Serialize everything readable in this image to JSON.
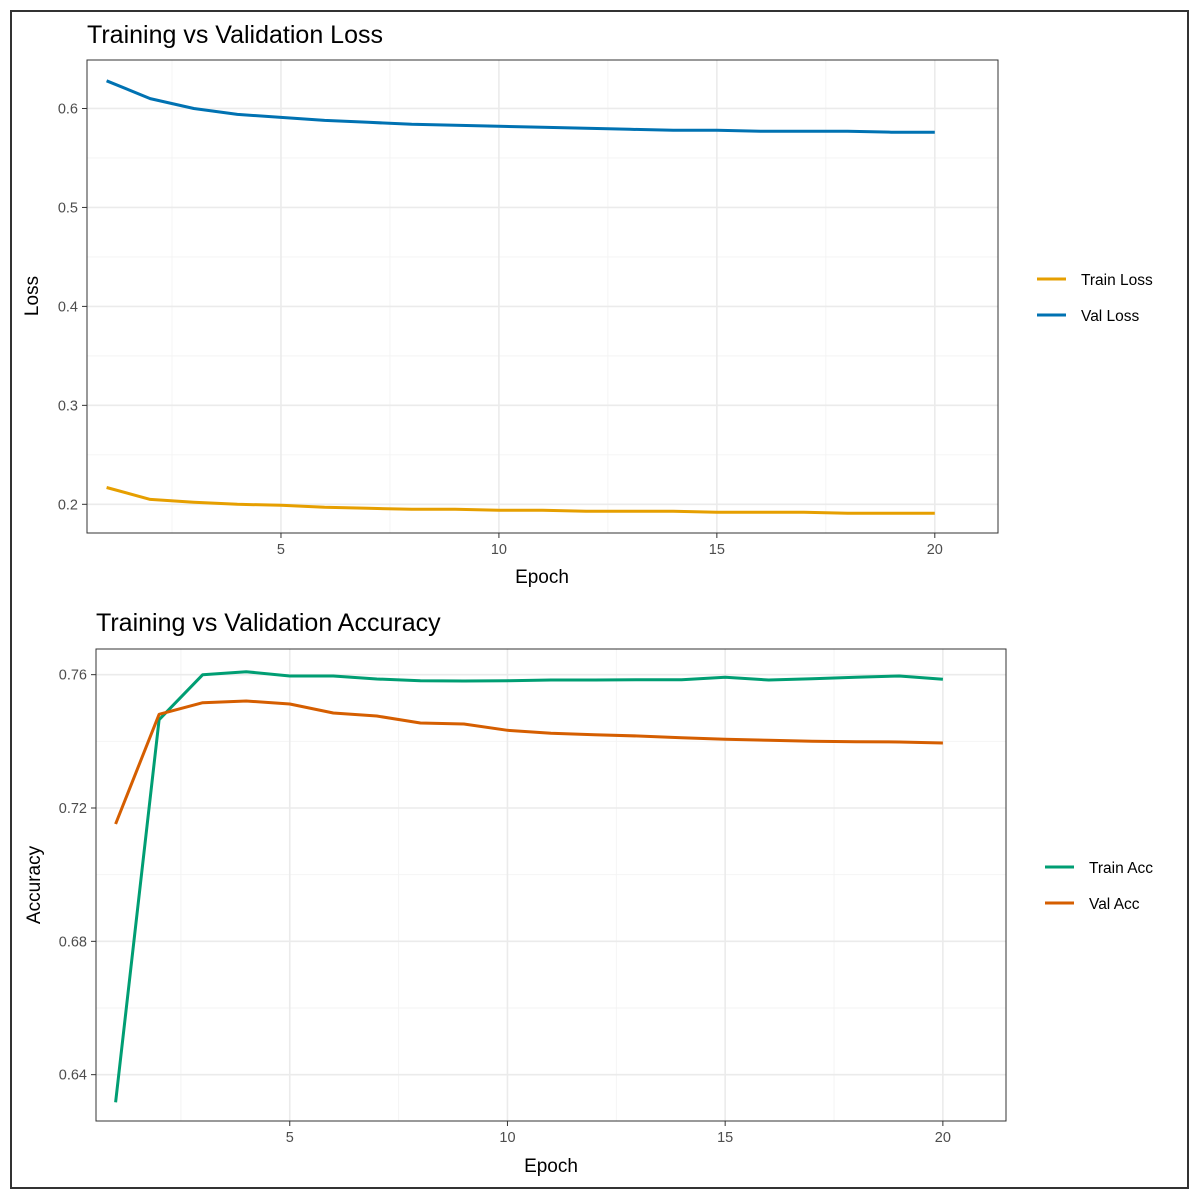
{
  "chart_data": [
    {
      "type": "line",
      "title": "Training vs Validation Loss",
      "xlabel": "Epoch",
      "ylabel": "Loss",
      "x": [
        1,
        2,
        3,
        4,
        5,
        6,
        7,
        8,
        9,
        10,
        11,
        12,
        13,
        14,
        15,
        16,
        17,
        18,
        19,
        20
      ],
      "xlim": [
        0.55,
        21.45
      ],
      "ylim": [
        0.171,
        0.649
      ],
      "x_ticks": [
        5,
        10,
        15,
        20
      ],
      "y_ticks": [
        0.2,
        0.3,
        0.4,
        0.5,
        0.6
      ],
      "x_tick_labels": [
        "5",
        "10",
        "15",
        "20"
      ],
      "y_tick_labels": [
        "0.2",
        "0.3",
        "0.4",
        "0.5",
        "0.6"
      ],
      "grid": true,
      "legend_position": "right",
      "series": [
        {
          "name": "Train Loss",
          "color": "#E69F00",
          "values": [
            0.217,
            0.205,
            0.202,
            0.2,
            0.199,
            0.197,
            0.196,
            0.195,
            0.195,
            0.194,
            0.194,
            0.193,
            0.193,
            0.193,
            0.192,
            0.192,
            0.192,
            0.191,
            0.191,
            0.191
          ]
        },
        {
          "name": "Val Loss",
          "color": "#0072B2",
          "values": [
            0.628,
            0.61,
            0.6,
            0.594,
            0.591,
            0.588,
            0.586,
            0.584,
            0.583,
            0.582,
            0.581,
            0.58,
            0.579,
            0.578,
            0.578,
            0.577,
            0.577,
            0.577,
            0.576,
            0.576
          ]
        }
      ]
    },
    {
      "type": "line",
      "title": "Training vs Validation Accuracy",
      "xlabel": "Epoch",
      "ylabel": "Accuracy",
      "x": [
        1,
        2,
        3,
        4,
        5,
        6,
        7,
        8,
        9,
        10,
        11,
        12,
        13,
        14,
        15,
        16,
        17,
        18,
        19,
        20
      ],
      "xlim": [
        0.55,
        21.45
      ],
      "ylim": [
        0.6261,
        0.7677
      ],
      "x_ticks": [
        5,
        10,
        15,
        20
      ],
      "y_ticks": [
        0.64,
        0.68,
        0.72,
        0.76
      ],
      "x_tick_labels": [
        "5",
        "10",
        "15",
        "20"
      ],
      "y_tick_labels": [
        "0.64",
        "0.68",
        "0.72",
        "0.76"
      ],
      "grid": true,
      "legend_position": "right",
      "series": [
        {
          "name": "Train Acc",
          "color": "#009E73",
          "values": [
            0.6317,
            0.7465,
            0.76,
            0.7609,
            0.7596,
            0.7596,
            0.7587,
            0.7582,
            0.7581,
            0.7582,
            0.7584,
            0.7584,
            0.7585,
            0.7585,
            0.7592,
            0.7584,
            0.7588,
            0.7592,
            0.7596,
            0.7586
          ]
        },
        {
          "name": "Val Acc",
          "color": "#D55E00",
          "values": [
            0.7152,
            0.7481,
            0.7516,
            0.7521,
            0.7512,
            0.7485,
            0.7476,
            0.7455,
            0.7452,
            0.7433,
            0.7424,
            0.742,
            0.7416,
            0.7411,
            0.7406,
            0.7403,
            0.74,
            0.7399,
            0.7398,
            0.7395
          ]
        }
      ]
    }
  ]
}
